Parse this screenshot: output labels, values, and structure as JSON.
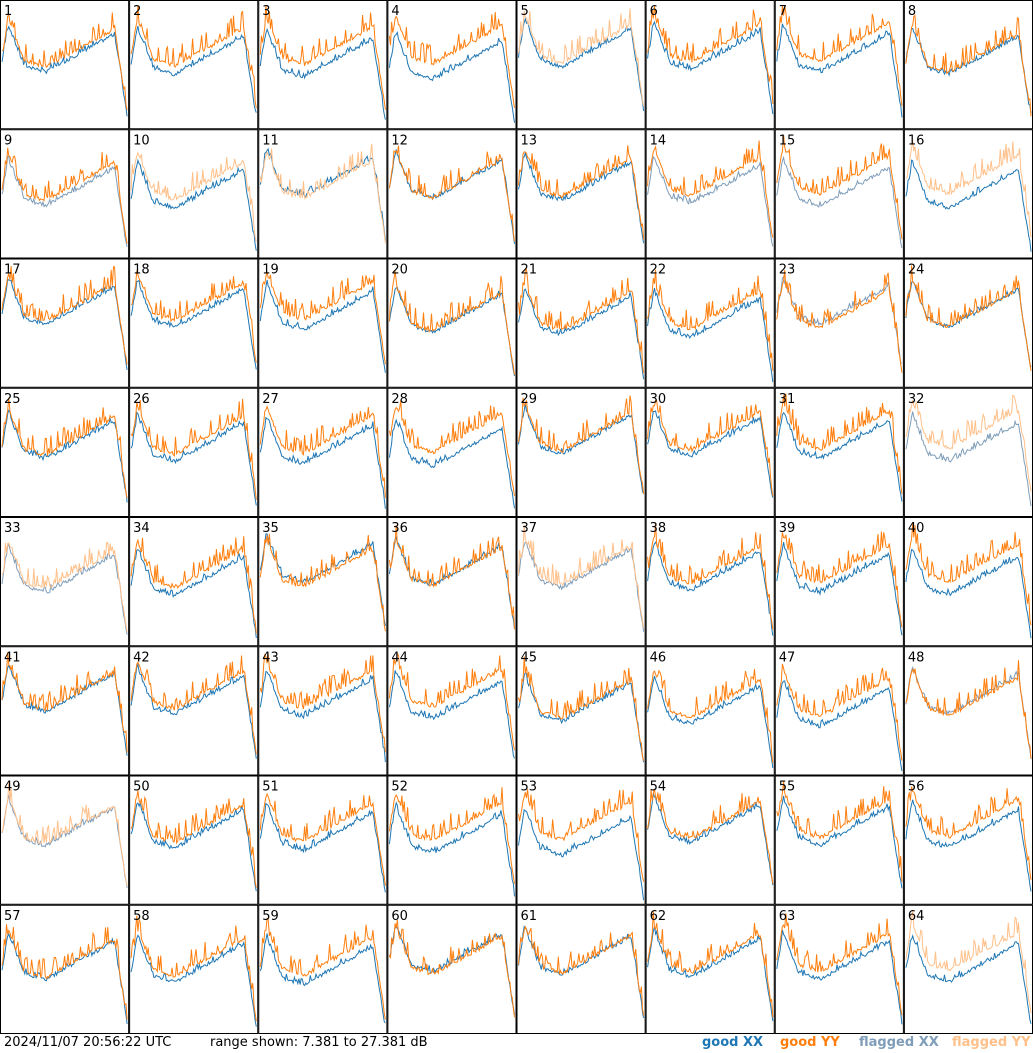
{
  "footer": {
    "timestamp": "2024/11/07 20:56:22 UTC",
    "range_text": "range shown: 7.381 to 27.381 dB"
  },
  "legend": [
    {
      "word1": "good",
      "word2": "XX",
      "color": "#1f77b4"
    },
    {
      "word1": "good",
      "word2": "YY",
      "color": "#ff7f0e"
    },
    {
      "word1": "flagged",
      "word2": "XX",
      "color": "#7f9db9"
    },
    {
      "word1": "flagged",
      "word2": "YY",
      "color": "#ffc08a"
    }
  ],
  "colors": {
    "good_xx": "#1f77b4",
    "good_yy": "#ff7f0e",
    "flagged_xx": "#7f9db9",
    "flagged_yy": "#ffc08a"
  },
  "chart_data": {
    "type": "line",
    "layout": "small multiples 8x8",
    "x": "frequency channel (no tick labels shown)",
    "ylim_db": [
      7.381,
      27.381
    ],
    "series_names": [
      "good XX",
      "good YY",
      "flagged XX",
      "flagged YY"
    ],
    "panels": [
      {
        "id": "1",
        "xx": "good",
        "yy": "good"
      },
      {
        "id": "2",
        "xx": "good",
        "yy": "good"
      },
      {
        "id": "3",
        "xx": "good",
        "yy": "good"
      },
      {
        "id": "4",
        "xx": "good",
        "yy": "good"
      },
      {
        "id": "5",
        "xx": "good",
        "yy": "flagged"
      },
      {
        "id": "6",
        "xx": "good",
        "yy": "good"
      },
      {
        "id": "7",
        "xx": "good",
        "yy": "good"
      },
      {
        "id": "8",
        "xx": "good",
        "yy": "good"
      },
      {
        "id": "9",
        "xx": "flagged",
        "yy": "good"
      },
      {
        "id": "10",
        "xx": "good",
        "yy": "flagged"
      },
      {
        "id": "11",
        "xx": "good",
        "yy": "flagged"
      },
      {
        "id": "12",
        "xx": "good",
        "yy": "good"
      },
      {
        "id": "13",
        "xx": "good",
        "yy": "good"
      },
      {
        "id": "14",
        "xx": "flagged",
        "yy": "good"
      },
      {
        "id": "15",
        "xx": "flagged",
        "yy": "good"
      },
      {
        "id": "16",
        "xx": "good",
        "yy": "flagged"
      },
      {
        "id": "17",
        "xx": "good",
        "yy": "good"
      },
      {
        "id": "18",
        "xx": "good",
        "yy": "good"
      },
      {
        "id": "19",
        "xx": "good",
        "yy": "good"
      },
      {
        "id": "20",
        "xx": "good",
        "yy": "good"
      },
      {
        "id": "21",
        "xx": "good",
        "yy": "good"
      },
      {
        "id": "22",
        "xx": "good",
        "yy": "good"
      },
      {
        "id": "23",
        "xx": "flagged",
        "yy": "good"
      },
      {
        "id": "24",
        "xx": "good",
        "yy": "good"
      },
      {
        "id": "25",
        "xx": "good",
        "yy": "good"
      },
      {
        "id": "26",
        "xx": "good",
        "yy": "good"
      },
      {
        "id": "27",
        "xx": "good",
        "yy": "good"
      },
      {
        "id": "28",
        "xx": "good",
        "yy": "good"
      },
      {
        "id": "29",
        "xx": "good",
        "yy": "good"
      },
      {
        "id": "30",
        "xx": "good",
        "yy": "good"
      },
      {
        "id": "31",
        "xx": "good",
        "yy": "good"
      },
      {
        "id": "32",
        "xx": "flagged",
        "yy": "flagged"
      },
      {
        "id": "33",
        "xx": "flagged",
        "yy": "flagged"
      },
      {
        "id": "34",
        "xx": "good",
        "yy": "good"
      },
      {
        "id": "35",
        "xx": "good",
        "yy": "good"
      },
      {
        "id": "36",
        "xx": "good",
        "yy": "good"
      },
      {
        "id": "37",
        "xx": "flagged",
        "yy": "flagged"
      },
      {
        "id": "38",
        "xx": "good",
        "yy": "good"
      },
      {
        "id": "39",
        "xx": "good",
        "yy": "good"
      },
      {
        "id": "40",
        "xx": "good",
        "yy": "good"
      },
      {
        "id": "41",
        "xx": "good",
        "yy": "good"
      },
      {
        "id": "42",
        "xx": "good",
        "yy": "good"
      },
      {
        "id": "43",
        "xx": "good",
        "yy": "good"
      },
      {
        "id": "44",
        "xx": "good",
        "yy": "good"
      },
      {
        "id": "45",
        "xx": "good",
        "yy": "good"
      },
      {
        "id": "46",
        "xx": "good",
        "yy": "good"
      },
      {
        "id": "47",
        "xx": "good",
        "yy": "good"
      },
      {
        "id": "48",
        "xx": "flagged",
        "yy": "good"
      },
      {
        "id": "49",
        "xx": "flagged",
        "yy": "flagged"
      },
      {
        "id": "50",
        "xx": "good",
        "yy": "good"
      },
      {
        "id": "51",
        "xx": "good",
        "yy": "good"
      },
      {
        "id": "52",
        "xx": "good",
        "yy": "good"
      },
      {
        "id": "53",
        "xx": "good",
        "yy": "good"
      },
      {
        "id": "54",
        "xx": "good",
        "yy": "good"
      },
      {
        "id": "55",
        "xx": "good",
        "yy": "good"
      },
      {
        "id": "56",
        "xx": "good",
        "yy": "good"
      },
      {
        "id": "57",
        "xx": "good",
        "yy": "good"
      },
      {
        "id": "58",
        "xx": "good",
        "yy": "good"
      },
      {
        "id": "59",
        "xx": "good",
        "yy": "good"
      },
      {
        "id": "60",
        "xx": "good",
        "yy": "good"
      },
      {
        "id": "61",
        "xx": "good",
        "yy": "good"
      },
      {
        "id": "62",
        "xx": "good",
        "yy": "good"
      },
      {
        "id": "63",
        "xx": "good",
        "yy": "good"
      },
      {
        "id": "64",
        "xx": "good",
        "yy": "flagged"
      }
    ]
  }
}
